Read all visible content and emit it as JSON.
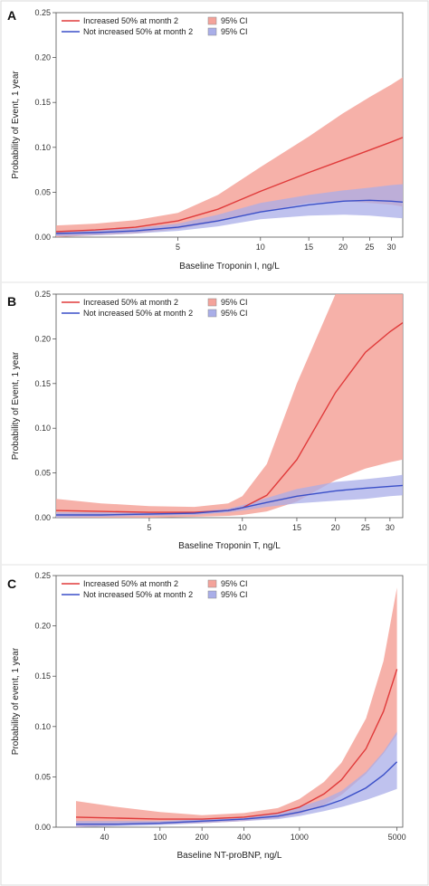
{
  "chart_data": [
    {
      "type": "area",
      "panel": "A",
      "xlabel": "Baseline Troponin I, ng/L",
      "ylabel": "Probability of Event, 1 year",
      "xscale": "log",
      "xlim": [
        1.8,
        33
      ],
      "ylim": [
        0,
        0.25
      ],
      "xticks": [
        5,
        10,
        15,
        20,
        25,
        30
      ],
      "yticks": [
        "0.00",
        "0.05",
        "0.10",
        "0.15",
        "0.20",
        "0.25"
      ],
      "legend_placement": "top-left",
      "legend": [
        {
          "label": "Increased 50% at month 2",
          "kind": "line",
          "color": "#e03a3a"
        },
        {
          "label": "95% CI",
          "kind": "band",
          "color": "#f4a39a"
        },
        {
          "label": "Not increased 50% at month 2",
          "kind": "line",
          "color": "#3a4fc8"
        },
        {
          "label": "95% CI",
          "kind": "band",
          "color": "#a9aee8"
        }
      ],
      "x": [
        1.8,
        2.5,
        3.5,
        5,
        7,
        10,
        15,
        20,
        25,
        30,
        33
      ],
      "series": [
        {
          "name": "Increased 50% at month 2",
          "color": "#e03a3a",
          "band_color": "#f4a39a",
          "values": [
            0.006,
            0.008,
            0.011,
            0.018,
            0.031,
            0.051,
            0.072,
            0.086,
            0.097,
            0.106,
            0.111
          ],
          "lower": [
            0.0,
            0.002,
            0.004,
            0.009,
            0.017,
            0.028,
            0.038,
            0.04,
            0.038,
            0.036,
            0.034
          ],
          "upper": [
            0.013,
            0.015,
            0.019,
            0.027,
            0.047,
            0.078,
            0.112,
            0.138,
            0.156,
            0.17,
            0.178
          ]
        },
        {
          "name": "Not increased 50% at month 2",
          "color": "#3a4fc8",
          "band_color": "#a9aee8",
          "values": [
            0.004,
            0.005,
            0.007,
            0.011,
            0.018,
            0.028,
            0.036,
            0.04,
            0.041,
            0.04,
            0.039
          ],
          "lower": [
            0.001,
            0.002,
            0.004,
            0.007,
            0.012,
            0.02,
            0.024,
            0.025,
            0.024,
            0.022,
            0.021
          ],
          "upper": [
            0.007,
            0.008,
            0.01,
            0.015,
            0.025,
            0.038,
            0.047,
            0.052,
            0.055,
            0.058,
            0.059
          ]
        }
      ]
    },
    {
      "type": "area",
      "panel": "B",
      "xlabel": "Baseline Troponin T, ng/L",
      "ylabel": "Probability of Event, 1 year",
      "xscale": "log",
      "xlim": [
        2.5,
        33
      ],
      "ylim": [
        0,
        0.25
      ],
      "xticks": [
        5,
        10,
        15,
        20,
        25,
        30
      ],
      "yticks": [
        "0.00",
        "0.05",
        "0.10",
        "0.15",
        "0.20",
        "0.25"
      ],
      "legend_placement": "top-left",
      "legend": [
        {
          "label": "Increased 50% at month 2",
          "kind": "line",
          "color": "#e03a3a"
        },
        {
          "label": "95% CI",
          "kind": "band",
          "color": "#f4a39a"
        },
        {
          "label": "Not increased 50% at month 2",
          "kind": "line",
          "color": "#3a4fc8"
        },
        {
          "label": "95% CI",
          "kind": "band",
          "color": "#a9aee8"
        }
      ],
      "x": [
        2.5,
        3.5,
        5,
        7,
        9,
        10,
        12,
        15,
        20,
        25,
        30,
        33
      ],
      "series": [
        {
          "name": "Increased 50% at month 2",
          "color": "#e03a3a",
          "band_color": "#f4a39a",
          "values": [
            0.008,
            0.007,
            0.006,
            0.006,
            0.008,
            0.011,
            0.025,
            0.065,
            0.14,
            0.185,
            0.208,
            0.218
          ],
          "lower": [
            0.0,
            0.0,
            0.0,
            0.001,
            0.002,
            0.003,
            0.007,
            0.018,
            0.042,
            0.055,
            0.062,
            0.065
          ],
          "upper": [
            0.021,
            0.016,
            0.013,
            0.012,
            0.016,
            0.024,
            0.06,
            0.15,
            0.25,
            0.25,
            0.25,
            0.25
          ]
        },
        {
          "name": "Not increased 50% at month 2",
          "color": "#3a4fc8",
          "band_color": "#a9aee8",
          "values": [
            0.003,
            0.003,
            0.004,
            0.005,
            0.008,
            0.011,
            0.017,
            0.024,
            0.03,
            0.033,
            0.035,
            0.036
          ],
          "lower": [
            0.0,
            0.001,
            0.002,
            0.003,
            0.006,
            0.008,
            0.012,
            0.016,
            0.019,
            0.021,
            0.024,
            0.025
          ],
          "upper": [
            0.006,
            0.006,
            0.006,
            0.007,
            0.01,
            0.014,
            0.022,
            0.032,
            0.04,
            0.043,
            0.046,
            0.048
          ]
        }
      ]
    },
    {
      "type": "area",
      "panel": "C",
      "xlabel": "Baseline NT-proBNP, ng/L",
      "ylabel": "Probability of event, 1 year",
      "xscale": "log",
      "xlim": [
        18,
        5500
      ],
      "ylim": [
        0,
        0.25
      ],
      "xticks": [
        40,
        100,
        200,
        400,
        1000,
        5000
      ],
      "yticks": [
        "0.00",
        "0.05",
        "0.10",
        "0.15",
        "0.20",
        "0.25"
      ],
      "legend_placement": "top-left",
      "legend": [
        {
          "label": "Increased 50% at month 2",
          "kind": "line",
          "color": "#e03a3a"
        },
        {
          "label": "95% CI",
          "kind": "band",
          "color": "#f4a39a"
        },
        {
          "label": "Not increased 50% at month 2",
          "kind": "line",
          "color": "#3a4fc8"
        },
        {
          "label": "95% CI",
          "kind": "band",
          "color": "#a9aee8"
        }
      ],
      "x": [
        25,
        50,
        100,
        200,
        400,
        700,
        1000,
        1500,
        2000,
        3000,
        4000,
        5000
      ],
      "series": [
        {
          "name": "Increased 50% at month 2",
          "color": "#e03a3a",
          "band_color": "#f4a39a",
          "values": [
            0.01,
            0.009,
            0.008,
            0.008,
            0.01,
            0.014,
            0.02,
            0.033,
            0.047,
            0.078,
            0.115,
            0.157
          ],
          "lower": [
            0.0,
            0.002,
            0.003,
            0.004,
            0.006,
            0.009,
            0.013,
            0.022,
            0.032,
            0.053,
            0.073,
            0.092
          ],
          "upper": [
            0.026,
            0.02,
            0.015,
            0.012,
            0.014,
            0.019,
            0.028,
            0.045,
            0.064,
            0.108,
            0.165,
            0.238
          ]
        },
        {
          "name": "Not increased 50% at month 2",
          "color": "#3a4fc8",
          "band_color": "#a9aee8",
          "values": [
            0.003,
            0.003,
            0.004,
            0.006,
            0.008,
            0.011,
            0.015,
            0.021,
            0.027,
            0.039,
            0.052,
            0.065
          ],
          "lower": [
            0.0,
            0.001,
            0.002,
            0.004,
            0.006,
            0.008,
            0.011,
            0.016,
            0.02,
            0.027,
            0.033,
            0.038
          ],
          "upper": [
            0.006,
            0.006,
            0.006,
            0.008,
            0.01,
            0.014,
            0.02,
            0.028,
            0.036,
            0.055,
            0.075,
            0.095
          ]
        }
      ]
    }
  ]
}
